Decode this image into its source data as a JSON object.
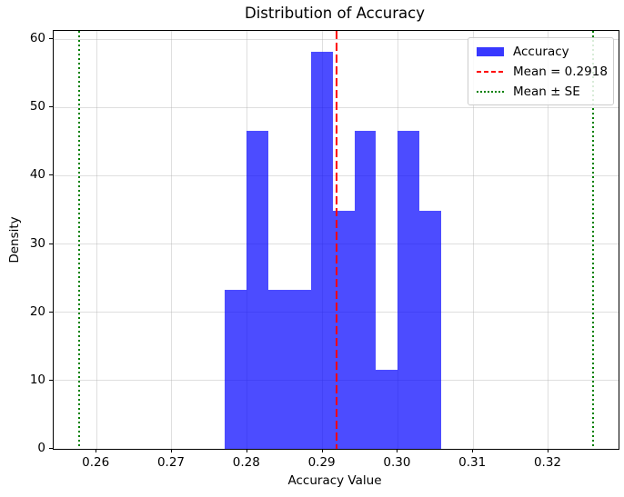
{
  "title": "Distribution of Accuracy",
  "chart_data": {
    "type": "bar",
    "subtype": "histogram-density",
    "title": "Distribution of Accuracy",
    "xlabel": "Accuracy Value",
    "ylabel": "Density",
    "xlim": [
      0.2543,
      0.3293
    ],
    "ylim": [
      0,
      61.2
    ],
    "grid": true,
    "xticks": [
      {
        "v": 0.26,
        "label": "0.26"
      },
      {
        "v": 0.27,
        "label": "0.27"
      },
      {
        "v": 0.28,
        "label": "0.28"
      },
      {
        "v": 0.29,
        "label": "0.29"
      },
      {
        "v": 0.3,
        "label": "0.30"
      },
      {
        "v": 0.31,
        "label": "0.31"
      },
      {
        "v": 0.32,
        "label": "0.32"
      }
    ],
    "yticks": [
      {
        "v": 0,
        "label": "0"
      },
      {
        "v": 10,
        "label": "10"
      },
      {
        "v": 20,
        "label": "20"
      },
      {
        "v": 30,
        "label": "30"
      },
      {
        "v": 40,
        "label": "40"
      },
      {
        "v": 50,
        "label": "50"
      },
      {
        "v": 60,
        "label": "60"
      }
    ],
    "bin_edges": [
      0.27703,
      0.2799,
      0.28276,
      0.28563,
      0.2885,
      0.29137,
      0.29423,
      0.2971,
      0.29997,
      0.30283,
      0.3057
    ],
    "densities": [
      23.26,
      46.51,
      23.26,
      23.26,
      58.14,
      34.88,
      46.51,
      11.63,
      46.51,
      34.88
    ],
    "mean": 0.2918,
    "se_lower": 0.2577,
    "se_upper": 0.3259,
    "colors": {
      "bar": "rgba(0,0,255,0.7)",
      "mean_line": "#ff0000",
      "se_line": "#008000",
      "grid": "rgba(176,176,176,0.4)",
      "spine": "#000000",
      "text": "#000000",
      "legend_border": "#cccccc"
    },
    "legend": {
      "position": "upper-right",
      "items": [
        {
          "label": "Accuracy",
          "swatch": "patch"
        },
        {
          "label": "Mean = 0.2918",
          "swatch": "dashed"
        },
        {
          "label": "Mean ± SE",
          "swatch": "dotted"
        }
      ]
    }
  }
}
